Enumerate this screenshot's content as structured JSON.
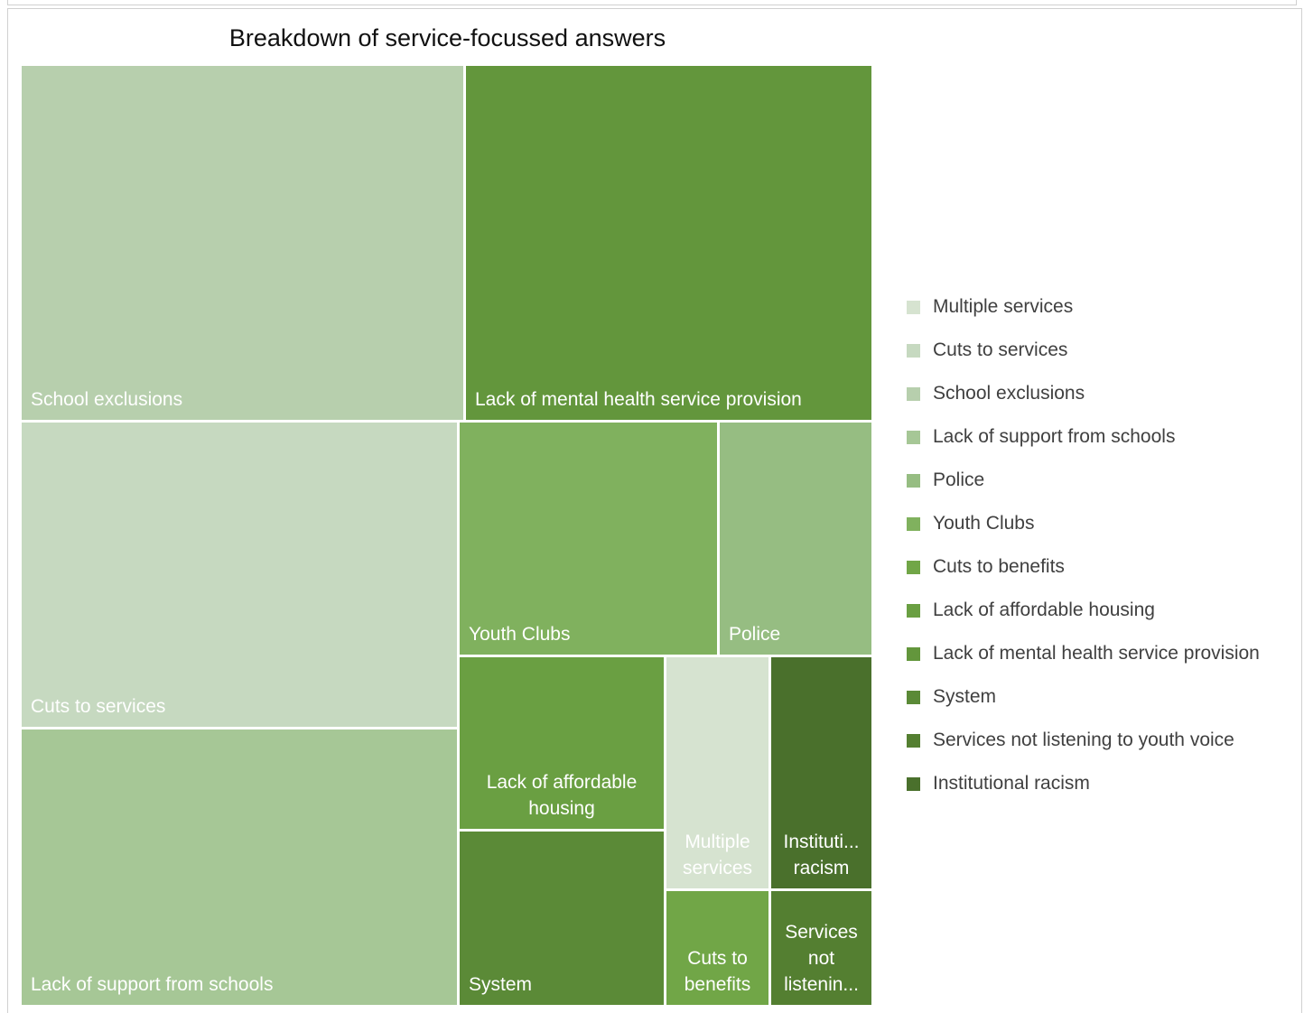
{
  "chart_data": {
    "type": "treemap",
    "title": "Breakdown of service-focussed answers",
    "legend_position": "right",
    "legend": [
      {
        "name": "Multiple services",
        "color": "#d6e3d0"
      },
      {
        "name": "Cuts to services",
        "color": "#c6d9c0"
      },
      {
        "name": "School exclusions",
        "color": "#b7cfad"
      },
      {
        "name": "Lack of support from schools",
        "color": "#a6c796"
      },
      {
        "name": "Police",
        "color": "#96bd82"
      },
      {
        "name": "Youth Clubs",
        "color": "#80b15e"
      },
      {
        "name": "Cuts to benefits",
        "color": "#71a647"
      },
      {
        "name": "Lack of affordable housing",
        "color": "#6a9f42"
      },
      {
        "name": "Lack of mental health service provision",
        "color": "#63963c"
      },
      {
        "name": "System",
        "color": "#5b8a37"
      },
      {
        "name": "Services not listening to youth voice",
        "color": "#547f31"
      },
      {
        "name": "Institutional racism",
        "color": "#4a702c"
      }
    ],
    "tiles": [
      {
        "name": "School exclusions",
        "label": "School exclusions",
        "value": 19.3,
        "color": "#b7cfad"
      },
      {
        "name": "Lack of mental health service provision",
        "label": "Lack of mental health service provision",
        "value": 17.8,
        "color": "#63963c"
      },
      {
        "name": "Cuts to services",
        "label": "Cuts to services",
        "value": 16.4,
        "color": "#c6d9c0"
      },
      {
        "name": "Lack of support from schools",
        "label": "Lack of support from schools",
        "value": 14.9,
        "color": "#a6c796"
      },
      {
        "name": "Youth Clubs",
        "label": "Youth Clubs",
        "value": 7.4,
        "color": "#80b15e"
      },
      {
        "name": "Police",
        "label": "Police",
        "value": 4.5,
        "color": "#96bd82"
      },
      {
        "name": "Lack of affordable housing",
        "label": "Lack of affordable housing",
        "value": 4.5,
        "color": "#6a9f42"
      },
      {
        "name": "System",
        "label": "System",
        "value": 4.5,
        "color": "#5b8a37"
      },
      {
        "name": "Multiple services",
        "label": "Multiple services",
        "value": 3.0,
        "color": "#d6e3d0"
      },
      {
        "name": "Institutional racism",
        "label": "Instituti... racism",
        "value": 3.0,
        "color": "#4a702c"
      },
      {
        "name": "Cuts to benefits",
        "label": "Cuts to benefits",
        "value": 1.5,
        "color": "#71a647"
      },
      {
        "name": "Services not listening to youth voice",
        "label": "Services not listenin...",
        "value": 1.5,
        "color": "#547f31"
      }
    ]
  }
}
